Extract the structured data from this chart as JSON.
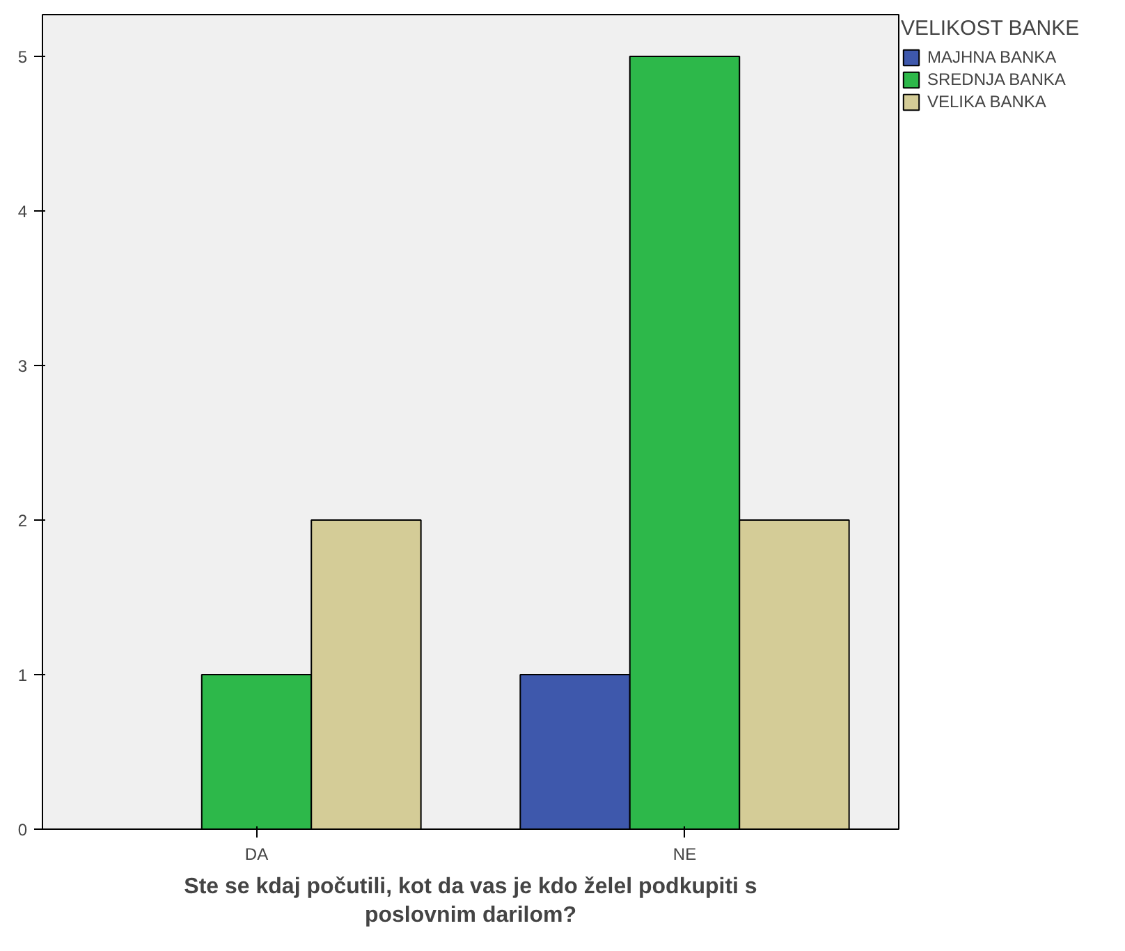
{
  "chart_data": {
    "type": "bar",
    "xlabel": "Ste se kdaj počutili, kot da vas je kdo želel podkupiti s poslovnim darilom?",
    "legend_title": "VELIKOST BANKE",
    "categories": [
      "DA",
      "NE"
    ],
    "series": [
      {
        "name": "MAJHNA BANKA",
        "color": "#3e58ac",
        "values": [
          null,
          1
        ]
      },
      {
        "name": "SREDNJA BANKA",
        "color": "#2db84a",
        "values": [
          1,
          5
        ]
      },
      {
        "name": "VELIKA BANKA",
        "color": "#d4cc97",
        "values": [
          2,
          2
        ]
      }
    ],
    "ylim": [
      0,
      5.27
    ],
    "yticks": [
      0,
      1,
      2,
      3,
      4,
      5
    ],
    "grid": false,
    "legend": "top right"
  }
}
